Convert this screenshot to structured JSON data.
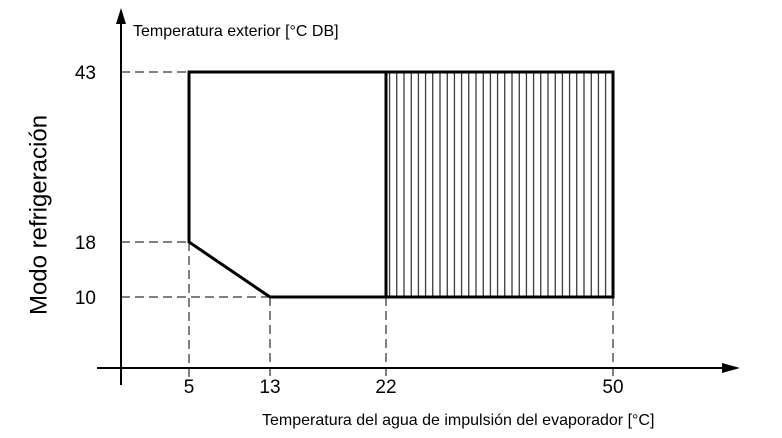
{
  "diagram": {
    "vertical_title": "Modo refrigeración",
    "y_axis_label": "Temperatura exterior [°C DB]",
    "x_axis_label": "Temperatura del agua de impulsión del evaporador [°C]",
    "y_ticks": [
      43,
      18,
      10
    ],
    "x_ticks": [
      5,
      13,
      22,
      50
    ]
  }
}
